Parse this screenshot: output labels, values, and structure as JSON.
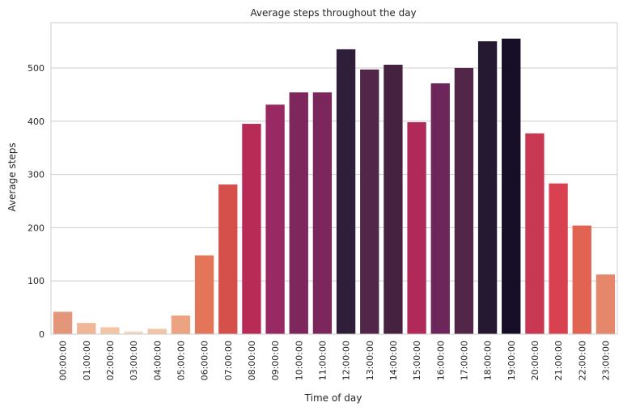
{
  "chart_data": {
    "type": "bar",
    "title": "Average steps throughout the day",
    "xlabel": "Time of day",
    "ylabel": "Average steps",
    "ylim": [
      0,
      585
    ],
    "yticks": [
      0,
      100,
      200,
      300,
      400,
      500
    ],
    "grid": "horizontal",
    "categories": [
      "00:00:00",
      "01:00:00",
      "02:00:00",
      "03:00:00",
      "04:00:00",
      "05:00:00",
      "06:00:00",
      "07:00:00",
      "08:00:00",
      "09:00:00",
      "10:00:00",
      "11:00:00",
      "12:00:00",
      "13:00:00",
      "14:00:00",
      "15:00:00",
      "16:00:00",
      "17:00:00",
      "18:00:00",
      "19:00:00",
      "20:00:00",
      "21:00:00",
      "22:00:00",
      "23:00:00"
    ],
    "values": [
      42,
      21,
      13,
      5,
      10,
      35,
      148,
      281,
      395,
      431,
      454,
      454,
      535,
      497,
      506,
      398,
      471,
      500,
      550,
      555,
      377,
      283,
      204,
      112
    ],
    "colors": [
      "#e3967a",
      "#efb795",
      "#f1c5a5",
      "#f5d7bf",
      "#f1c5a5",
      "#eba382",
      "#e37659",
      "#d5504a",
      "#b72b56",
      "#982962",
      "#7e275c",
      "#7b275c",
      "#2e1e3a",
      "#522649",
      "#452240",
      "#b02958",
      "#6c2659",
      "#522649",
      "#241931",
      "#150e26",
      "#c93852",
      "#d94151",
      "#e16452",
      "#e5876b"
    ]
  }
}
